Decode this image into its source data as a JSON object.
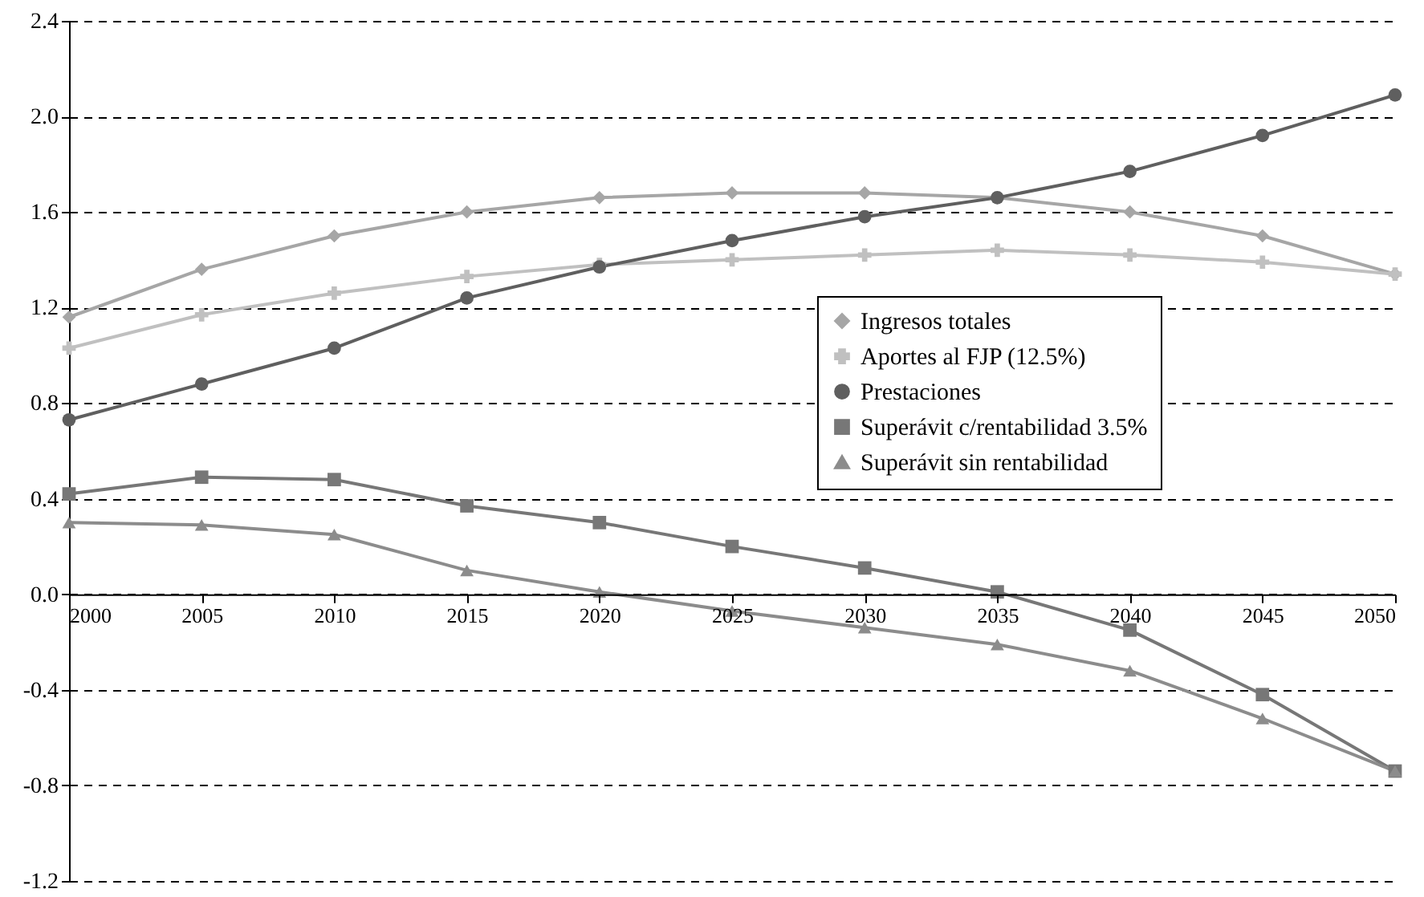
{
  "chart_data": {
    "type": "line",
    "x": [
      2000,
      2005,
      2010,
      2015,
      2020,
      2025,
      2030,
      2035,
      2040,
      2045,
      2050
    ],
    "xlim": [
      2000,
      2050
    ],
    "xticks": [
      2000,
      2005,
      2010,
      2015,
      2020,
      2025,
      2030,
      2035,
      2040,
      2045,
      2050
    ],
    "ylim": [
      -1.2,
      2.4
    ],
    "yticks": [
      -1.2,
      -0.8,
      -0.4,
      {
        "value": 0,
        "label": "0.0"
      },
      0.4,
      0.8,
      1.2,
      1.6,
      {
        "value": 2,
        "label": "2.0"
      },
      2.4
    ],
    "grid": "y",
    "legend": "right",
    "line_style": "solid",
    "series": [
      {
        "name": "Ingresos totales",
        "color": "#a6a6a6",
        "marker": "diamond",
        "values": [
          1.16,
          1.36,
          1.5,
          1.6,
          1.66,
          1.68,
          1.68,
          1.66,
          1.6,
          1.5,
          1.34
        ]
      },
      {
        "name": "Aportes al FJP (12.5%)",
        "color": "#c0c0c0",
        "marker": "cross",
        "values": [
          1.03,
          1.17,
          1.26,
          1.33,
          1.38,
          1.4,
          1.42,
          1.44,
          1.42,
          1.39,
          1.34
        ]
      },
      {
        "name": "Prestaciones",
        "color": "#5f5f5f",
        "marker": "circle",
        "values": [
          0.73,
          0.88,
          1.03,
          1.24,
          1.37,
          1.48,
          1.58,
          1.66,
          1.77,
          1.92,
          2.09
        ]
      },
      {
        "name": "Superávit c/rentabilidad 3.5%",
        "color": "#777777",
        "marker": "square",
        "values": [
          0.42,
          0.49,
          0.48,
          0.37,
          0.3,
          0.2,
          0.11,
          0.01,
          -0.15,
          -0.42,
          -0.74
        ]
      },
      {
        "name": "Superávit sin rentabilidad",
        "color": "#8c8c8c",
        "marker": "triangle",
        "values": [
          0.3,
          0.29,
          0.25,
          0.1,
          0.01,
          -0.07,
          -0.14,
          -0.21,
          -0.32,
          -0.52,
          -0.74
        ]
      }
    ]
  }
}
